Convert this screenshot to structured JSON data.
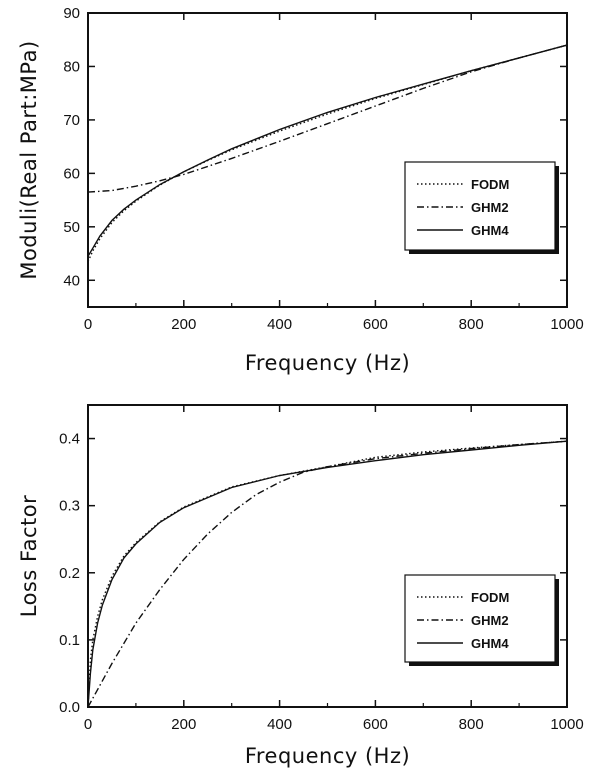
{
  "chart_data": [
    {
      "type": "line",
      "title": "",
      "xlabel": "Frequency (Hz)",
      "ylabel": "Moduli(Real Part:MPa)",
      "xlim": [
        0,
        1000
      ],
      "ylim": [
        35,
        90
      ],
      "xticks": [
        "0",
        "200",
        "400",
        "600",
        "800",
        "1000"
      ],
      "yticks": [
        "40",
        "50",
        "60",
        "70",
        "80",
        "90"
      ],
      "grid": false,
      "legend": "center-right",
      "series": [
        {
          "name": "FODM",
          "style": "dotted",
          "x": [
            0,
            10,
            25,
            50,
            75,
            100,
            150,
            200,
            250,
            300,
            400,
            500,
            600,
            700,
            800,
            900,
            1000
          ],
          "y": [
            43.5,
            45.5,
            47.8,
            50.8,
            53.0,
            54.8,
            57.8,
            60.3,
            62.4,
            64.4,
            67.9,
            71.1,
            74.0,
            76.6,
            79.2,
            81.6,
            84.0
          ]
        },
        {
          "name": "GHM2",
          "style": "dashdot",
          "x": [
            0,
            50,
            100,
            150,
            200,
            250,
            300,
            400,
            500,
            600,
            700,
            800,
            900,
            1000
          ],
          "y": [
            56.5,
            56.8,
            57.6,
            58.6,
            59.8,
            61.3,
            62.8,
            66.0,
            69.3,
            72.6,
            75.9,
            79.0,
            81.6,
            84.0
          ]
        },
        {
          "name": "GHM4",
          "style": "solid",
          "x": [
            0,
            10,
            25,
            50,
            75,
            100,
            150,
            200,
            250,
            300,
            400,
            500,
            600,
            700,
            800,
            900,
            1000
          ],
          "y": [
            44.5,
            46.0,
            48.3,
            51.2,
            53.3,
            55.0,
            57.9,
            60.3,
            62.5,
            64.6,
            68.2,
            71.4,
            74.2,
            76.7,
            79.2,
            81.6,
            84.0
          ]
        }
      ]
    },
    {
      "type": "line",
      "title": "",
      "xlabel": "Frequency (Hz)",
      "ylabel": "Loss Factor",
      "xlim": [
        0,
        1000
      ],
      "ylim": [
        0,
        0.45
      ],
      "xticks": [
        "0",
        "200",
        "400",
        "600",
        "800",
        "1000"
      ],
      "yticks": [
        "0.0",
        "0.1",
        "0.2",
        "0.3",
        "0.4"
      ],
      "grid": false,
      "legend": "lower-right",
      "series": [
        {
          "name": "FODM",
          "style": "dotted",
          "x": [
            0,
            5,
            10,
            20,
            30,
            50,
            75,
            100,
            150,
            200,
            300,
            400,
            500,
            600,
            700,
            800,
            900,
            1000
          ],
          "y": [
            0.0,
            0.07,
            0.1,
            0.135,
            0.16,
            0.195,
            0.225,
            0.245,
            0.276,
            0.298,
            0.328,
            0.345,
            0.358,
            0.372,
            0.38,
            0.386,
            0.391,
            0.396
          ]
        },
        {
          "name": "GHM2",
          "style": "dashdot",
          "x": [
            0,
            50,
            100,
            150,
            200,
            250,
            300,
            350,
            400,
            450,
            500,
            600,
            700,
            800,
            900,
            1000
          ],
          "y": [
            0.0,
            0.065,
            0.125,
            0.175,
            0.22,
            0.258,
            0.29,
            0.316,
            0.335,
            0.35,
            0.358,
            0.37,
            0.378,
            0.385,
            0.391,
            0.396
          ]
        },
        {
          "name": "GHM4",
          "style": "solid",
          "x": [
            0,
            5,
            10,
            20,
            30,
            50,
            75,
            100,
            150,
            200,
            300,
            400,
            500,
            600,
            700,
            800,
            900,
            1000
          ],
          "y": [
            0.0,
            0.05,
            0.085,
            0.125,
            0.152,
            0.19,
            0.222,
            0.243,
            0.275,
            0.297,
            0.327,
            0.345,
            0.357,
            0.367,
            0.376,
            0.383,
            0.39,
            0.396
          ]
        }
      ]
    }
  ]
}
